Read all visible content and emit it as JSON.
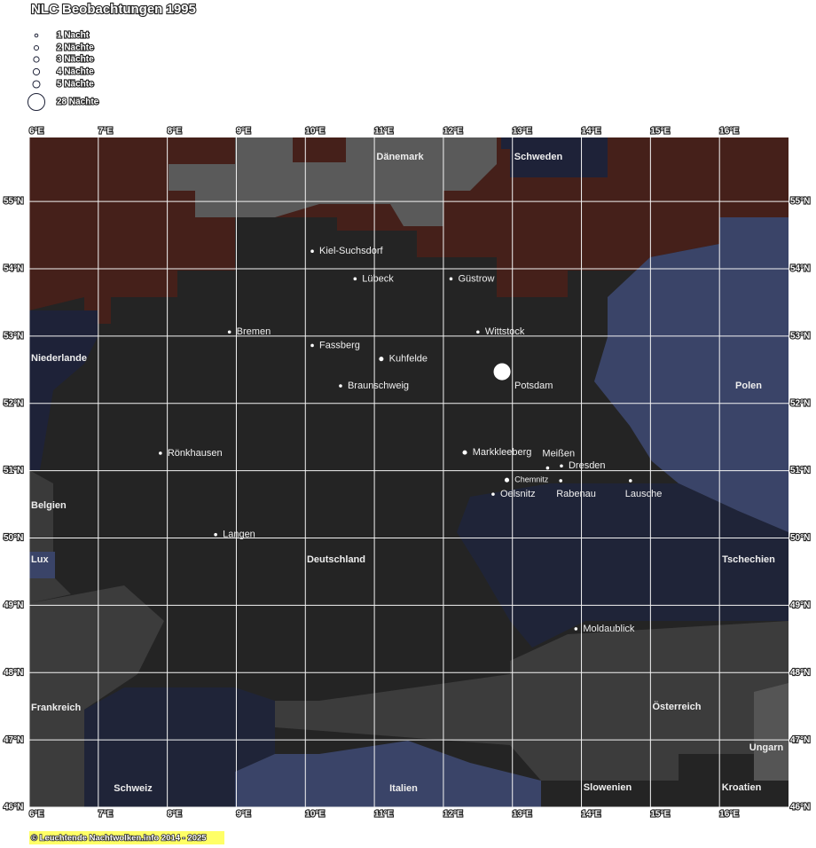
{
  "title": "NLC Beobachtungen 1995",
  "legend": [
    {
      "label": "1 Nacht",
      "nights": 1
    },
    {
      "label": "2 Nächte",
      "nights": 2
    },
    {
      "label": "3 Nächte",
      "nights": 3
    },
    {
      "label": "4 Nächte",
      "nights": 4
    },
    {
      "label": "5 Nächte",
      "nights": 5
    },
    {
      "label": "28 Nächte",
      "nights": 28
    }
  ],
  "lonlim": [
    6,
    17
  ],
  "latlim": [
    46,
    55.95
  ],
  "xticks": [
    {
      "value": 6,
      "label": "6°E"
    },
    {
      "value": 7,
      "label": "7°E"
    },
    {
      "value": 8,
      "label": "8°E"
    },
    {
      "value": 9,
      "label": "9°E"
    },
    {
      "value": 10,
      "label": "10°E"
    },
    {
      "value": 11,
      "label": "11°E"
    },
    {
      "value": 12,
      "label": "12°E"
    },
    {
      "value": 13,
      "label": "13°E"
    },
    {
      "value": 14,
      "label": "14°E"
    },
    {
      "value": 15,
      "label": "15°E"
    },
    {
      "value": 16,
      "label": "16°E"
    }
  ],
  "yticks": [
    {
      "value": 46,
      "label": "46°N"
    },
    {
      "value": 47,
      "label": "47°N"
    },
    {
      "value": 48,
      "label": "48°N"
    },
    {
      "value": 49,
      "label": "49°N"
    },
    {
      "value": 50,
      "label": "50°N"
    },
    {
      "value": 51,
      "label": "51°N"
    },
    {
      "value": 52,
      "label": "52°N"
    },
    {
      "value": 53,
      "label": "53°N"
    },
    {
      "value": 54,
      "label": "54°N"
    },
    {
      "value": 55,
      "label": "55°N"
    }
  ],
  "stations": [
    {
      "name": "Kiel-Suchsdorf",
      "lon": 10.1,
      "lat": 54.26,
      "nights": 1
    },
    {
      "name": "Lübeck",
      "lon": 10.72,
      "lat": 53.85,
      "nights": 1
    },
    {
      "name": "Güstrow",
      "lon": 12.11,
      "lat": 53.85,
      "nights": 1
    },
    {
      "name": "Bremen",
      "lon": 8.9,
      "lat": 53.06,
      "nights": 1
    },
    {
      "name": "Wittstock",
      "lon": 12.5,
      "lat": 53.06,
      "nights": 1
    },
    {
      "name": "Fassberg",
      "lon": 10.1,
      "lat": 52.86,
      "nights": 1
    },
    {
      "name": "Kuhfelde",
      "lon": 11.1,
      "lat": 52.66,
      "nights": 2
    },
    {
      "name": "Braunschweig",
      "lon": 10.51,
      "lat": 52.26,
      "nights": 1
    },
    {
      "name": "Potsdam",
      "lon": 12.85,
      "lat": 52.47,
      "nights": 28
    },
    {
      "name": "Rönkhausen",
      "lon": 7.9,
      "lat": 51.26,
      "nights": 1
    },
    {
      "name": "Markkleeberg",
      "lon": 12.31,
      "lat": 51.27,
      "nights": 2
    },
    {
      "name": "Dresden",
      "lon": 13.71,
      "lat": 51.07,
      "nights": 1
    },
    {
      "name": "Meißen",
      "lon": 13.51,
      "lat": 51.04,
      "nights": 1
    },
    {
      "name": "Chemnitz",
      "lon": 12.92,
      "lat": 50.86,
      "nights": 2
    },
    {
      "name": "Oelsnitz",
      "lon": 12.72,
      "lat": 50.65,
      "nights": 1
    },
    {
      "name": "Rabenau",
      "lon": 13.7,
      "lat": 50.85,
      "nights": 1
    },
    {
      "name": "Lausche",
      "lon": 14.71,
      "lat": 50.85,
      "nights": 1
    },
    {
      "name": "Langen",
      "lon": 8.7,
      "lat": 50.05,
      "nights": 1
    },
    {
      "name": "Moldaublick",
      "lon": 13.92,
      "lat": 48.65,
      "nights": 1
    }
  ],
  "countries": [
    "Dänemark",
    "Schweden",
    "Niederlande",
    "Polen",
    "Belgien",
    "Lux",
    "Deutschland",
    "Tschechien",
    "Frankreich",
    "Österreich",
    "Ungarn",
    "Schweiz",
    "Italien",
    "Slowenien",
    "Kroatien"
  ],
  "footer": "© Leuchtende Nachtwolken.info 2014 - 2025"
}
